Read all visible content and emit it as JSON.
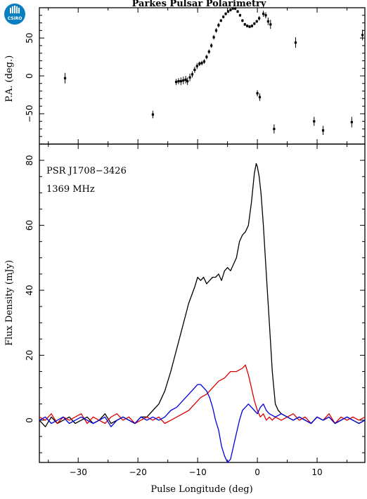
{
  "header": {
    "logo_text": "CSIRO"
  },
  "chart_data": [
    {
      "type": "scatter",
      "title": "Parkes Pulsar Polarimetry",
      "ylabel": "P.A. (deg.)",
      "xlim": [
        -36.5,
        18
      ],
      "ylim": [
        -90,
        90
      ],
      "yticks": [
        -50,
        0,
        50
      ],
      "series": [
        {
          "points": [
            {
              "x": -32.2,
              "y": -3,
              "err": 7
            },
            {
              "x": -17.5,
              "y": -51,
              "err": 5
            },
            {
              "x": -13.6,
              "y": -8,
              "err": 4
            },
            {
              "x": -13.2,
              "y": -7,
              "err": 4
            },
            {
              "x": -12.8,
              "y": -7,
              "err": 5
            },
            {
              "x": -12.4,
              "y": -6,
              "err": 5
            },
            {
              "x": -12.0,
              "y": -5,
              "err": 5
            },
            {
              "x": -11.7,
              "y": -7,
              "err": 5
            },
            {
              "x": -11.3,
              "y": -2,
              "err": 5
            },
            {
              "x": -10.9,
              "y": 2,
              "err": 4
            },
            {
              "x": -10.5,
              "y": 8,
              "err": 4
            },
            {
              "x": -10.1,
              "y": 13,
              "err": 4
            },
            {
              "x": -9.7,
              "y": 16,
              "err": 3
            },
            {
              "x": -9.3,
              "y": 17,
              "err": 3
            },
            {
              "x": -8.9,
              "y": 19,
              "err": 3
            },
            {
              "x": -8.5,
              "y": 25,
              "err": 3
            },
            {
              "x": -8.1,
              "y": 32,
              "err": 3
            },
            {
              "x": -7.7,
              "y": 40,
              "err": 3
            },
            {
              "x": -7.3,
              "y": 51,
              "err": 3
            },
            {
              "x": -6.9,
              "y": 60,
              "err": 3
            },
            {
              "x": -6.5,
              "y": 67,
              "err": 3
            },
            {
              "x": -6.1,
              "y": 73,
              "err": 2
            },
            {
              "x": -5.7,
              "y": 78,
              "err": 2
            },
            {
              "x": -5.3,
              "y": 82,
              "err": 2
            },
            {
              "x": -4.9,
              "y": 85,
              "err": 2
            },
            {
              "x": -4.5,
              "y": 87,
              "err": 2
            },
            {
              "x": -4.1,
              "y": 89,
              "err": 2
            },
            {
              "x": -3.7,
              "y": 89,
              "err": 2
            },
            {
              "x": -3.3,
              "y": 85,
              "err": 2
            },
            {
              "x": -2.9,
              "y": 80,
              "err": 2
            },
            {
              "x": -2.5,
              "y": 73,
              "err": 2
            },
            {
              "x": -2.1,
              "y": 68,
              "err": 2
            },
            {
              "x": -1.7,
              "y": 66,
              "err": 2
            },
            {
              "x": -1.3,
              "y": 65,
              "err": 2
            },
            {
              "x": -0.9,
              "y": 66,
              "err": 2
            },
            {
              "x": -0.5,
              "y": 69,
              "err": 2
            },
            {
              "x": -0.1,
              "y": 72,
              "err": 2
            },
            {
              "x": 0.3,
              "y": 76,
              "err": 3
            },
            {
              "x": 1.0,
              "y": 82,
              "err": 4
            },
            {
              "x": 1.4,
              "y": 80,
              "err": 4
            },
            {
              "x": 1.8,
              "y": 72,
              "err": 5
            },
            {
              "x": 2.2,
              "y": 68,
              "err": 6
            },
            {
              "x": 0.0,
              "y": -23,
              "err": 4
            },
            {
              "x": 0.4,
              "y": -28,
              "err": 5
            },
            {
              "x": 2.8,
              "y": -70,
              "err": 6
            },
            {
              "x": 6.4,
              "y": 44,
              "err": 7
            },
            {
              "x": 9.5,
              "y": -60,
              "err": 6
            },
            {
              "x": 11.0,
              "y": -72,
              "err": 6
            },
            {
              "x": 15.8,
              "y": -61,
              "err": 7
            },
            {
              "x": 17.6,
              "y": 54,
              "err": 7
            }
          ]
        }
      ]
    },
    {
      "type": "line",
      "xlabel": "Pulse Longitude (deg)",
      "ylabel": "Flux Density (mJy)",
      "xlim": [
        -36.5,
        18
      ],
      "ylim": [
        -13,
        85
      ],
      "xticks": [
        -30,
        -20,
        -10,
        0,
        10
      ],
      "yticks": [
        0,
        20,
        40,
        60,
        80
      ],
      "annotations": [
        "PSR J1708−3426",
        "1369 MHz"
      ],
      "series": [
        {
          "color": "#000000",
          "x": [
            -36.5,
            -35.5,
            -34.5,
            -33.5,
            -32.5,
            -31.5,
            -30.5,
            -29.5,
            -28.5,
            -27.5,
            -26.5,
            -25.5,
            -24.5,
            -23.5,
            -22.5,
            -21.5,
            -20.5,
            -19.5,
            -18.5,
            -17.5,
            -16.5,
            -15.5,
            -14.5,
            -13.5,
            -12.5,
            -11.5,
            -10.5,
            -10.0,
            -9.5,
            -9.0,
            -8.5,
            -8.0,
            -7.5,
            -7.0,
            -6.5,
            -6.0,
            -5.5,
            -5.0,
            -4.5,
            -4.0,
            -3.5,
            -3.0,
            -2.5,
            -2.0,
            -1.5,
            -1.0,
            -0.5,
            -0.2,
            0.0,
            0.3,
            0.6,
            1.0,
            1.5,
            2.0,
            2.5,
            3.0,
            3.5,
            4.0,
            5.0,
            6.0,
            7.0,
            8.0,
            9.0,
            10.0,
            11.0,
            12.0,
            13.0,
            14.0,
            15.0,
            16.0,
            17.0,
            18.0
          ],
          "values": [
            0,
            -2,
            1,
            -1,
            0,
            1,
            -1,
            0,
            1,
            -1,
            0,
            2,
            -1,
            0,
            1,
            0,
            -1,
            1,
            1,
            3,
            5,
            9,
            15,
            22,
            29,
            36,
            41,
            44,
            43,
            44,
            42,
            43,
            44,
            44,
            45,
            43,
            46,
            47,
            46,
            48,
            50,
            55,
            57,
            58,
            60,
            67,
            76,
            79,
            78,
            75,
            70,
            60,
            45,
            30,
            15,
            5,
            3,
            2,
            1,
            0,
            1,
            0,
            -1,
            1,
            0,
            1,
            -1,
            0,
            1,
            0,
            -1,
            0
          ]
        },
        {
          "color": "#dd0000",
          "x": [
            -36.5,
            -35.5,
            -34.5,
            -33.5,
            -32.5,
            -31.5,
            -30.5,
            -29.5,
            -28.5,
            -27.5,
            -26.5,
            -25.5,
            -24.5,
            -23.5,
            -22.5,
            -21.5,
            -20.5,
            -19.5,
            -18.5,
            -17.5,
            -16.5,
            -15.5,
            -14.5,
            -13.5,
            -12.5,
            -11.5,
            -10.5,
            -9.5,
            -8.5,
            -7.5,
            -6.5,
            -5.5,
            -4.5,
            -3.5,
            -2.5,
            -2.0,
            -1.5,
            -1.0,
            -0.5,
            0.0,
            0.5,
            1.0,
            1.5,
            2.0,
            2.5,
            3.0,
            4.0,
            5.0,
            6.0,
            7.0,
            8.0,
            9.0,
            10.0,
            11.0,
            12.0,
            13.0,
            14.0,
            15.0,
            16.0,
            17.0,
            18.0
          ],
          "values": [
            1,
            0,
            2,
            -1,
            1,
            0,
            1,
            2,
            -1,
            1,
            0,
            -1,
            1,
            2,
            0,
            1,
            -1,
            0,
            1,
            0,
            1,
            -1,
            0,
            1,
            2,
            3,
            5,
            7,
            8,
            10,
            12,
            13,
            15,
            15,
            16,
            17,
            14,
            10,
            6,
            3,
            1,
            2,
            0,
            1,
            0,
            1,
            0,
            1,
            2,
            0,
            1,
            -1,
            1,
            0,
            2,
            -1,
            1,
            0,
            1,
            0,
            1
          ]
        },
        {
          "color": "#0000dd",
          "x": [
            -36.5,
            -35.5,
            -34.5,
            -33.5,
            -32.5,
            -31.5,
            -30.5,
            -29.5,
            -28.5,
            -27.5,
            -26.5,
            -25.5,
            -24.5,
            -23.5,
            -22.5,
            -21.5,
            -20.5,
            -19.5,
            -18.5,
            -17.5,
            -16.5,
            -15.5,
            -14.5,
            -13.5,
            -12.5,
            -11.5,
            -10.5,
            -10.0,
            -9.5,
            -9.0,
            -8.5,
            -8.0,
            -7.5,
            -7.0,
            -6.5,
            -6.0,
            -5.5,
            -5.0,
            -4.5,
            -4.0,
            -3.5,
            -3.0,
            -2.5,
            -2.0,
            -1.5,
            -1.0,
            -0.5,
            0.0,
            0.5,
            1.0,
            1.5,
            2.0,
            3.0,
            4.0,
            5.0,
            6.0,
            7.0,
            8.0,
            9.0,
            10.0,
            11.0,
            12.0,
            13.0,
            14.0,
            15.0,
            16.0,
            17.0,
            18.0
          ],
          "values": [
            0,
            1,
            -1,
            0,
            1,
            -1,
            0,
            1,
            0,
            -1,
            0,
            1,
            -2,
            0,
            1,
            0,
            -1,
            1,
            0,
            1,
            0,
            1,
            3,
            4,
            6,
            8,
            10,
            11,
            11,
            10,
            9,
            7,
            4,
            0,
            -3,
            -8,
            -11,
            -13,
            -12,
            -8,
            -4,
            0,
            3,
            4,
            5,
            4,
            3,
            2,
            4,
            5,
            3,
            2,
            1,
            2,
            1,
            0,
            1,
            0,
            -1,
            1,
            0,
            1,
            -1,
            0,
            1,
            0,
            -1,
            0
          ]
        }
      ]
    }
  ]
}
